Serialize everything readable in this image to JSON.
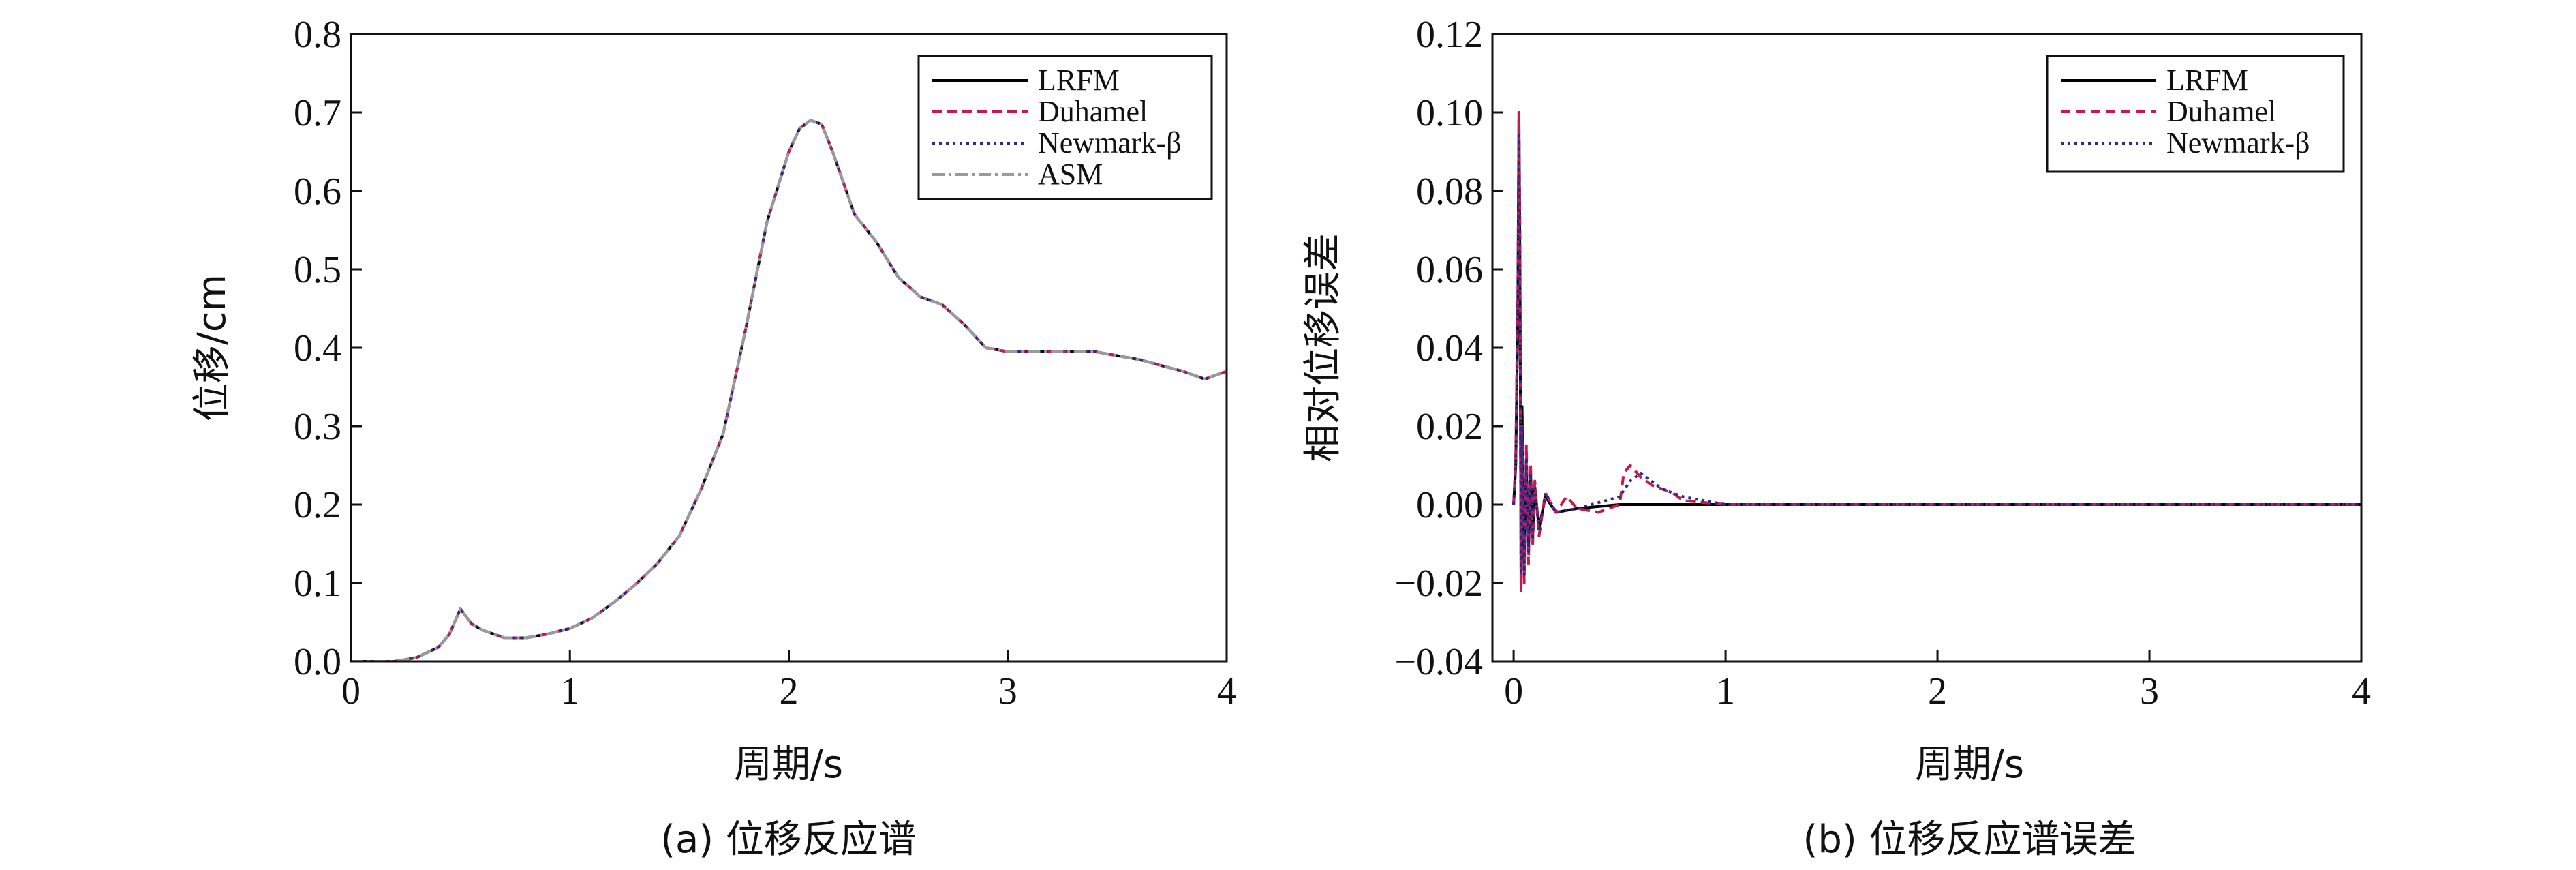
{
  "chart_data": [
    {
      "type": "line",
      "xlabel": "周期/s",
      "ylabel": "位移/cm",
      "caption": "(a) 位移反应谱",
      "xlim": [
        0,
        4
      ],
      "ylim": [
        0,
        0.8
      ],
      "xticks": [
        "0",
        "1",
        "2",
        "3",
        "4"
      ],
      "yticks": [
        "0.0",
        "0.1",
        "0.2",
        "0.3",
        "0.4",
        "0.5",
        "0.6",
        "0.7",
        "0.8"
      ],
      "legend_position": "top-right",
      "x": [
        0.0,
        0.2,
        0.3,
        0.4,
        0.45,
        0.5,
        0.55,
        0.6,
        0.7,
        0.8,
        0.9,
        1.0,
        1.1,
        1.2,
        1.3,
        1.4,
        1.5,
        1.6,
        1.7,
        1.8,
        1.9,
        2.0,
        2.05,
        2.1,
        2.15,
        2.2,
        2.3,
        2.4,
        2.5,
        2.6,
        2.7,
        2.8,
        2.9,
        3.0,
        3.2,
        3.4,
        3.6,
        3.8,
        3.9,
        4.0
      ],
      "series": [
        {
          "name": "LRFM",
          "color": "#000000",
          "dash": "",
          "values": [
            0.0,
            0.0,
            0.005,
            0.018,
            0.035,
            0.067,
            0.048,
            0.04,
            0.03,
            0.03,
            0.035,
            0.042,
            0.055,
            0.075,
            0.098,
            0.125,
            0.16,
            0.22,
            0.29,
            0.42,
            0.56,
            0.65,
            0.68,
            0.69,
            0.685,
            0.65,
            0.57,
            0.535,
            0.49,
            0.465,
            0.455,
            0.43,
            0.4,
            0.395,
            0.395,
            0.395,
            0.385,
            0.37,
            0.36,
            0.37
          ]
        },
        {
          "name": "Duhamel",
          "color": "#c8184c",
          "dash": "14,8",
          "values": [
            0.0,
            0.0,
            0.005,
            0.018,
            0.035,
            0.067,
            0.048,
            0.04,
            0.03,
            0.03,
            0.035,
            0.042,
            0.055,
            0.075,
            0.098,
            0.125,
            0.16,
            0.22,
            0.29,
            0.42,
            0.56,
            0.65,
            0.68,
            0.69,
            0.685,
            0.65,
            0.57,
            0.535,
            0.49,
            0.465,
            0.455,
            0.43,
            0.4,
            0.395,
            0.395,
            0.395,
            0.385,
            0.37,
            0.36,
            0.37
          ]
        },
        {
          "name": "Newmark-β",
          "color": "#2a2a8c",
          "dash": "4,6",
          "values": [
            0.0,
            0.0,
            0.005,
            0.018,
            0.035,
            0.067,
            0.048,
            0.04,
            0.03,
            0.03,
            0.035,
            0.042,
            0.055,
            0.075,
            0.098,
            0.125,
            0.16,
            0.22,
            0.29,
            0.42,
            0.56,
            0.65,
            0.68,
            0.69,
            0.685,
            0.65,
            0.57,
            0.535,
            0.49,
            0.465,
            0.455,
            0.43,
            0.4,
            0.395,
            0.395,
            0.395,
            0.385,
            0.37,
            0.36,
            0.37
          ]
        },
        {
          "name": "ASM",
          "color": "#9a9a9a",
          "dash": "18,6,4,6",
          "values": [
            0.0,
            0.0,
            0.005,
            0.018,
            0.035,
            0.067,
            0.048,
            0.04,
            0.03,
            0.03,
            0.035,
            0.042,
            0.055,
            0.075,
            0.098,
            0.125,
            0.16,
            0.22,
            0.29,
            0.42,
            0.56,
            0.65,
            0.68,
            0.69,
            0.685,
            0.65,
            0.57,
            0.535,
            0.49,
            0.465,
            0.455,
            0.43,
            0.4,
            0.395,
            0.395,
            0.395,
            0.385,
            0.37,
            0.36,
            0.37
          ]
        }
      ]
    },
    {
      "type": "line",
      "xlabel": "周期/s",
      "ylabel": "相对位移误差",
      "caption": "(b) 位移反应谱误差",
      "xlim": [
        -0.1,
        4
      ],
      "ylim": [
        -0.04,
        0.12
      ],
      "xticks": [
        "0",
        "1",
        "2",
        "3",
        "4"
      ],
      "yticks": [
        "−0.04",
        "−0.02",
        "0.00",
        "0.02",
        "0.04",
        "0.06",
        "0.08",
        "0.10",
        "0.12"
      ],
      "legend_position": "top-right",
      "series": [
        {
          "name": "LRFM",
          "color": "#000000",
          "dash": "",
          "x": [
            0.0,
            0.01,
            0.02,
            0.025,
            0.03,
            0.035,
            0.04,
            0.05,
            0.06,
            0.07,
            0.08,
            0.09,
            0.1,
            0.12,
            0.15,
            0.2,
            0.3,
            0.5,
            0.7,
            1.0,
            2.0,
            3.0,
            4.0
          ],
          "values": [
            0.0,
            0.01,
            0.05,
            0.1,
            0.06,
            -0.02,
            0.025,
            -0.015,
            0.01,
            -0.012,
            0.008,
            -0.008,
            0.004,
            -0.006,
            0.002,
            -0.002,
            -0.001,
            0.0,
            0.0,
            0.0,
            0.0,
            0.0,
            0.0
          ]
        },
        {
          "name": "Duhamel",
          "color": "#c8184c",
          "dash": "14,8",
          "x": [
            0.0,
            0.01,
            0.02,
            0.025,
            0.03,
            0.035,
            0.04,
            0.05,
            0.06,
            0.07,
            0.08,
            0.09,
            0.1,
            0.12,
            0.15,
            0.2,
            0.25,
            0.3,
            0.4,
            0.5,
            0.52,
            0.55,
            0.6,
            0.65,
            0.7,
            0.75,
            0.8,
            1.0,
            2.0,
            3.0,
            4.0
          ],
          "values": [
            0.0,
            0.012,
            0.055,
            0.1,
            0.07,
            -0.022,
            0.02,
            -0.02,
            0.015,
            -0.015,
            0.01,
            -0.01,
            0.006,
            -0.008,
            0.003,
            -0.002,
            0.002,
            -0.001,
            -0.002,
            0.0,
            0.008,
            0.01,
            0.007,
            0.005,
            0.004,
            0.003,
            0.001,
            0.0,
            0.0,
            0.0,
            0.0
          ]
        },
        {
          "name": "Newmark-β",
          "color": "#2a2a8c",
          "dash": "4,6",
          "x": [
            0.0,
            0.01,
            0.02,
            0.025,
            0.03,
            0.035,
            0.04,
            0.05,
            0.06,
            0.07,
            0.08,
            0.09,
            0.1,
            0.12,
            0.15,
            0.2,
            0.3,
            0.5,
            0.55,
            0.6,
            0.65,
            0.7,
            0.75,
            0.8,
            0.9,
            1.0,
            2.0,
            3.0,
            4.0
          ],
          "values": [
            0.0,
            0.01,
            0.05,
            0.095,
            0.06,
            -0.018,
            0.02,
            -0.018,
            0.012,
            -0.012,
            0.008,
            -0.009,
            0.005,
            -0.007,
            0.003,
            -0.002,
            -0.001,
            0.002,
            0.006,
            0.008,
            0.006,
            0.004,
            0.003,
            0.002,
            0.001,
            0.0,
            0.0,
            0.0,
            0.0
          ]
        }
      ]
    }
  ]
}
